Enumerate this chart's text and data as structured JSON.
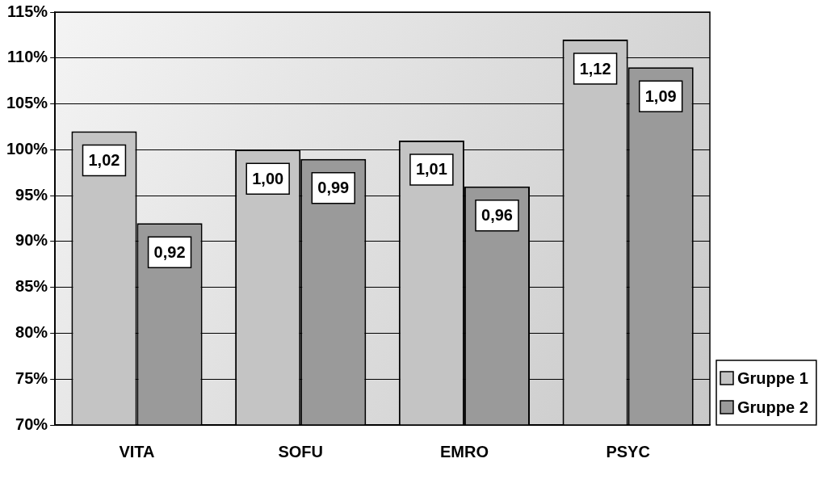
{
  "chart_data": {
    "type": "bar",
    "categories": [
      "VITA",
      "SOFU",
      "EMRO",
      "PSYC"
    ],
    "series": [
      {
        "name": "Gruppe 1",
        "color": "#c4c4c4",
        "values": [
          1.02,
          1.0,
          1.01,
          1.12
        ],
        "value_labels": [
          "1,02",
          "1,00",
          "1,01",
          "1,12"
        ]
      },
      {
        "name": "Gruppe 2",
        "color": "#9a9a9a",
        "values": [
          0.92,
          0.99,
          0.96,
          1.09
        ],
        "value_labels": [
          "0,92",
          "0,99",
          "0,96",
          "1,09"
        ]
      }
    ],
    "ylim": [
      0.7,
      1.15
    ],
    "yticks": [
      {
        "value": 0.7,
        "label": "70%"
      },
      {
        "value": 0.75,
        "label": "75%"
      },
      {
        "value": 0.8,
        "label": "80%"
      },
      {
        "value": 0.85,
        "label": "85%"
      },
      {
        "value": 0.9,
        "label": "90%"
      },
      {
        "value": 0.95,
        "label": "95%"
      },
      {
        "value": 1,
        "label": "100%"
      },
      {
        "value": 1.05,
        "label": "105%"
      },
      {
        "value": 1.1,
        "label": "110%"
      },
      {
        "value": 1.15,
        "label": "115%"
      }
    ],
    "grid": "y",
    "legend": "bottom right"
  }
}
